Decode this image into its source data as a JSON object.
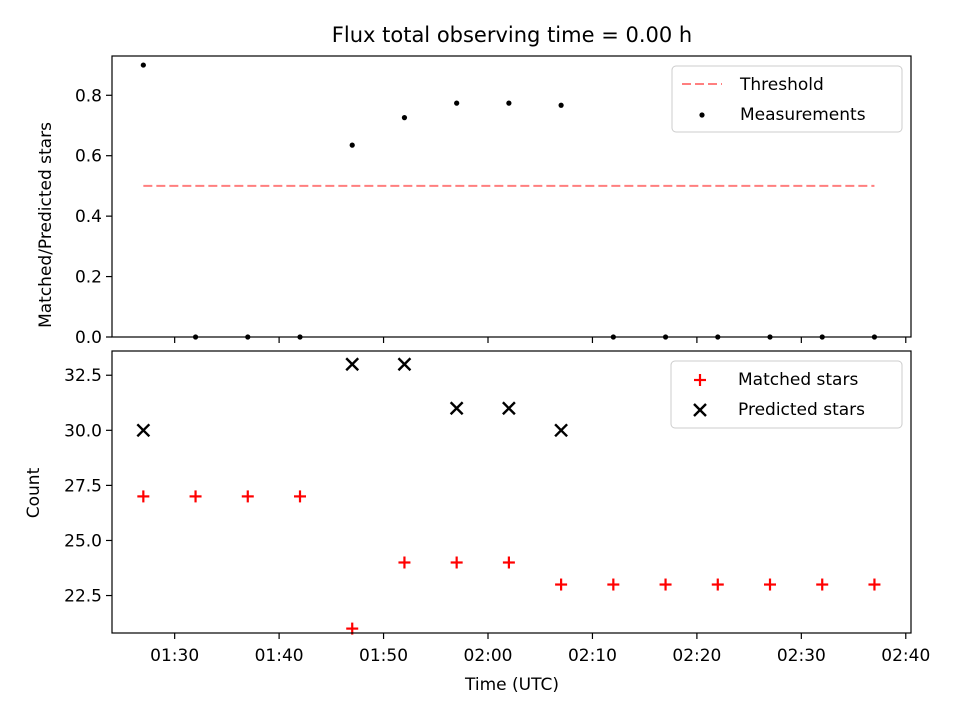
{
  "chart_data": [
    {
      "type": "scatter",
      "title": "Flux total observing time = 0.00 h",
      "xlabel": "",
      "ylabel": "Matched/Predicted stars",
      "xlim_minutes": [
        84,
        160.5
      ],
      "ylim": [
        0,
        0.93
      ],
      "yticks": [
        0,
        0.2,
        0.4,
        0.6,
        0.8
      ],
      "ytick_labels": [
        "0.0",
        "0.2",
        "0.4",
        "0.6",
        "0.8"
      ],
      "grid": false,
      "legend_position": "top-right",
      "threshold": {
        "name": "Threshold",
        "value": 0.5,
        "x_range": [
          87,
          157
        ],
        "color": "#ff7f7f"
      },
      "series": [
        {
          "name": "Measurements",
          "marker": "dot",
          "color": "#000000",
          "x": [
            "01:27",
            "01:32",
            "01:37",
            "01:42",
            "01:47",
            "01:52",
            "01:57",
            "02:02",
            "02:07",
            "02:12",
            "02:17",
            "02:22",
            "02:27",
            "02:32",
            "02:37"
          ],
          "values": [
            0.9,
            0,
            0,
            0,
            0.635,
            0.726,
            0.774,
            0.774,
            0.767,
            0,
            0,
            0,
            0,
            0,
            0
          ]
        }
      ]
    },
    {
      "type": "scatter",
      "title": "",
      "xlabel": "Time (UTC)",
      "ylabel": "Count",
      "xlim_minutes": [
        84,
        160.5
      ],
      "ylim": [
        20.8,
        33.6
      ],
      "yticks": [
        22.5,
        25.0,
        27.5,
        30.0,
        32.5
      ],
      "ytick_labels": [
        "22.5",
        "25.0",
        "27.5",
        "30.0",
        "32.5"
      ],
      "xticks_minutes": [
        90,
        100,
        110,
        120,
        130,
        140,
        150,
        160
      ],
      "xtick_labels": [
        "01:30",
        "01:40",
        "01:50",
        "02:00",
        "02:10",
        "02:20",
        "02:30",
        "02:40"
      ],
      "grid": false,
      "legend_position": "top-right",
      "series": [
        {
          "name": "Matched stars",
          "marker": "plus",
          "color": "#ff0000",
          "x": [
            "01:27",
            "01:32",
            "01:37",
            "01:42",
            "01:47",
            "01:52",
            "01:57",
            "02:02",
            "02:07",
            "02:12",
            "02:17",
            "02:22",
            "02:27",
            "02:32",
            "02:37"
          ],
          "values": [
            27,
            27,
            27,
            27,
            21,
            24,
            24,
            24,
            23,
            23,
            23,
            23,
            23,
            23,
            23
          ]
        },
        {
          "name": "Predicted stars",
          "marker": "x",
          "color": "#000000",
          "x": [
            "01:27",
            "01:47",
            "01:52",
            "01:57",
            "02:02",
            "02:07"
          ],
          "values": [
            30,
            33,
            33,
            31,
            31,
            30
          ]
        }
      ]
    }
  ]
}
